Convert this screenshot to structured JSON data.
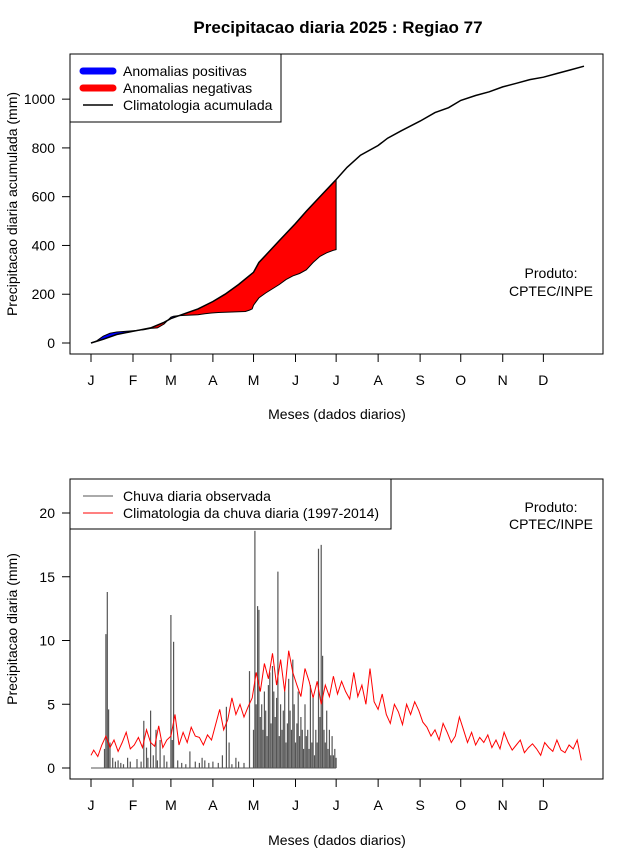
{
  "title": "Precipitacao diaria 2025 : Regiao 77",
  "colors": {
    "positive": "#0000ff",
    "negative": "#ff0000",
    "clim_line": "#000000",
    "obs_bar": "#555555",
    "clim_daily": "#ff0000"
  },
  "chart_data": [
    {
      "type": "area",
      "title": "",
      "xlabel": "Meses (dados diarios)",
      "ylabel": "Precipitacao diaria acumulada (mm)",
      "x_ticks": [
        "J",
        "F",
        "M",
        "A",
        "M",
        "J",
        "J",
        "A",
        "S",
        "O",
        "N",
        "D"
      ],
      "x_tick_days": [
        1,
        32,
        60,
        91,
        121,
        152,
        182,
        213,
        244,
        274,
        305,
        335
      ],
      "xlim": [
        1,
        365
      ],
      "ylim": [
        0,
        1140
      ],
      "y_ticks": [
        0,
        200,
        400,
        600,
        800,
        1000
      ],
      "grid": false,
      "legend_position": "top-left",
      "legend": [
        "Anomalias positivas",
        "Anomalias negativas",
        "Climatologia acumulada"
      ],
      "annotation": [
        "Produto:",
        "CPTEC/INPE"
      ],
      "climatology_cumulative": {
        "x": [
          1,
          10,
          20,
          32,
          45,
          55,
          60,
          70,
          80,
          91,
          100,
          110,
          121,
          125,
          130,
          140,
          152,
          160,
          170,
          182,
          190,
          200,
          213,
          220,
          230,
          244,
          255,
          265,
          274,
          285,
          295,
          305,
          315,
          325,
          335,
          345,
          355,
          365
        ],
        "y": [
          0,
          15,
          35,
          48,
          62,
          85,
          100,
          120,
          140,
          170,
          200,
          240,
          290,
          330,
          360,
          420,
          490,
          540,
          600,
          670,
          720,
          770,
          810,
          840,
          870,
          910,
          945,
          965,
          995,
          1015,
          1030,
          1050,
          1065,
          1080,
          1090,
          1105,
          1120,
          1135
        ]
      },
      "observed_cumulative": {
        "x": [
          1,
          5,
          10,
          15,
          20,
          25,
          32,
          40,
          45,
          50,
          55,
          58,
          60,
          62,
          65,
          70,
          80,
          85,
          90,
          95,
          100,
          105,
          110,
          115,
          118,
          120,
          121,
          125,
          130,
          140,
          145,
          150,
          155,
          160,
          165,
          170,
          175,
          180,
          182
        ],
        "y": [
          0,
          8,
          28,
          40,
          45,
          47,
          50,
          54,
          60,
          62,
          78,
          95,
          106,
          110,
          112,
          113,
          116,
          120,
          123,
          125,
          126,
          127,
          128,
          129,
          135,
          140,
          155,
          185,
          205,
          240,
          260,
          275,
          285,
          300,
          330,
          355,
          370,
          380,
          383
        ]
      }
    },
    {
      "type": "bar",
      "title": "",
      "xlabel": "Meses (dados diarios)",
      "ylabel": "Precipitacao diaria (mm)",
      "x_ticks": [
        "J",
        "F",
        "M",
        "A",
        "M",
        "J",
        "J",
        "A",
        "S",
        "O",
        "N",
        "D"
      ],
      "x_tick_days": [
        1,
        32,
        60,
        91,
        121,
        152,
        182,
        213,
        244,
        274,
        305,
        335
      ],
      "xlim": [
        1,
        365
      ],
      "ylim": [
        -0.5,
        22.5
      ],
      "y_ticks": [
        0,
        5,
        10,
        15,
        20
      ],
      "grid": false,
      "legend_position": "top-left",
      "legend": [
        "Chuva diaria observada",
        "Climatologia da chuva diaria (1997-2014)"
      ],
      "annotation": [
        "Produto:",
        "CPTEC/INPE"
      ],
      "series": [
        {
          "name": "Chuva diaria observada",
          "x": [
            11,
            12,
            13,
            14,
            15,
            17,
            19,
            21,
            23,
            25,
            28,
            30,
            35,
            38,
            40,
            42,
            43,
            45,
            47,
            49,
            50,
            52,
            55,
            57,
            60,
            61,
            62,
            65,
            68,
            71,
            74,
            78,
            81,
            83,
            85,
            88,
            91,
            95,
            98,
            101,
            103,
            105,
            108,
            110,
            114,
            118,
            121,
            122,
            123,
            124,
            125,
            126,
            127,
            128,
            129,
            130,
            131,
            132,
            133,
            134,
            135,
            136,
            137,
            138,
            139,
            140,
            141,
            142,
            143,
            144,
            145,
            146,
            147,
            148,
            149,
            150,
            151,
            152,
            153,
            154,
            155,
            156,
            157,
            158,
            159,
            160,
            161,
            162,
            163,
            164,
            165,
            166,
            167,
            168,
            169,
            170,
            171,
            172,
            173,
            174,
            175,
            176,
            177,
            178,
            179,
            180,
            181,
            182
          ],
          "values": [
            1.5,
            10.5,
            13.8,
            4.6,
            2.0,
            0.8,
            0.5,
            0.6,
            0.4,
            0.3,
            0.8,
            0.5,
            0.7,
            0.5,
            3.7,
            1.6,
            0.8,
            4.5,
            1.0,
            3.0,
            0.6,
            2.2,
            1.0,
            0.5,
            12.0,
            2.2,
            9.9,
            0.6,
            0.4,
            0.3,
            1.3,
            0.5,
            0.4,
            0.8,
            0.6,
            0.4,
            0.5,
            0.4,
            1.0,
            4.8,
            2.0,
            0.3,
            0.8,
            0.5,
            0.4,
            7.6,
            3.0,
            18.6,
            5.0,
            12.7,
            12.4,
            4.0,
            5.0,
            3.0,
            6.0,
            4.5,
            2.5,
            6.5,
            7.5,
            3.5,
            8.0,
            6.0,
            4.0,
            5.5,
            15.4,
            2.5,
            5.0,
            3.0,
            4.5,
            6.0,
            2.0,
            3.5,
            7.0,
            4.5,
            3.0,
            8.5,
            5.0,
            2.0,
            3.5,
            6.0,
            2.5,
            4.0,
            3.0,
            1.5,
            5.0,
            2.5,
            3.0,
            1.5,
            6.5,
            2.0,
            5.5,
            1.0,
            3.0,
            2.0,
            17.2,
            4.0,
            17.5,
            8.8,
            3.0,
            2.0,
            4.5,
            1.5,
            3.0,
            1.0,
            2.5,
            1.0,
            1.5,
            0.8
          ]
        },
        {
          "name": "Climatologia da chuva diaria (1997-2014)",
          "x": [
            1,
            3,
            6,
            9,
            12,
            15,
            18,
            21,
            24,
            27,
            30,
            33,
            36,
            39,
            42,
            45,
            48,
            51,
            54,
            57,
            60,
            63,
            66,
            69,
            72,
            75,
            78,
            81,
            84,
            87,
            90,
            93,
            96,
            99,
            102,
            105,
            108,
            111,
            114,
            117,
            120,
            123,
            126,
            129,
            132,
            135,
            138,
            141,
            144,
            147,
            150,
            153,
            156,
            159,
            162,
            165,
            168,
            171,
            174,
            177,
            180,
            183,
            186,
            189,
            192,
            195,
            198,
            201,
            204,
            207,
            210,
            213,
            216,
            219,
            222,
            225,
            228,
            231,
            234,
            237,
            240,
            243,
            246,
            249,
            252,
            255,
            258,
            261,
            264,
            267,
            270,
            273,
            276,
            279,
            282,
            285,
            288,
            291,
            294,
            297,
            300,
            303,
            306,
            309,
            312,
            315,
            318,
            321,
            324,
            327,
            330,
            333,
            336,
            339,
            342,
            345,
            348,
            351,
            354,
            357,
            360,
            363
          ],
          "values": [
            1.0,
            1.4,
            0.9,
            1.8,
            2.5,
            1.6,
            2.2,
            1.3,
            2.0,
            2.8,
            1.5,
            1.8,
            2.4,
            1.6,
            3.0,
            2.0,
            1.7,
            3.3,
            1.6,
            2.2,
            2.5,
            4.2,
            1.8,
            2.8,
            2.0,
            3.2,
            2.5,
            2.4,
            1.8,
            2.6,
            2.2,
            3.4,
            4.6,
            3.0,
            3.8,
            5.5,
            4.2,
            5.0,
            4.0,
            4.8,
            5.5,
            7.5,
            6.0,
            8.2,
            7.0,
            9.0,
            6.5,
            8.5,
            6.0,
            9.2,
            7.5,
            6.5,
            5.6,
            7.8,
            6.8,
            5.5,
            6.8,
            5.0,
            6.5,
            5.6,
            7.2,
            5.8,
            6.8,
            6.0,
            5.4,
            7.5,
            5.6,
            6.5,
            5.0,
            7.8,
            5.2,
            4.6,
            5.8,
            4.2,
            3.5,
            5.0,
            4.4,
            3.4,
            5.0,
            4.2,
            5.2,
            4.5,
            3.6,
            3.2,
            2.5,
            3.0,
            2.2,
            3.5,
            2.8,
            2.0,
            2.5,
            4.0,
            3.0,
            2.0,
            2.8,
            1.8,
            2.4,
            2.0,
            2.6,
            1.6,
            2.2,
            1.5,
            2.8,
            2.0,
            1.4,
            1.8,
            2.2,
            1.2,
            1.6,
            1.9,
            1.5,
            1.0,
            2.0,
            1.6,
            1.3,
            2.2,
            1.4,
            1.2,
            1.8,
            1.5,
            2.2,
            0.6
          ]
        }
      ]
    }
  ]
}
